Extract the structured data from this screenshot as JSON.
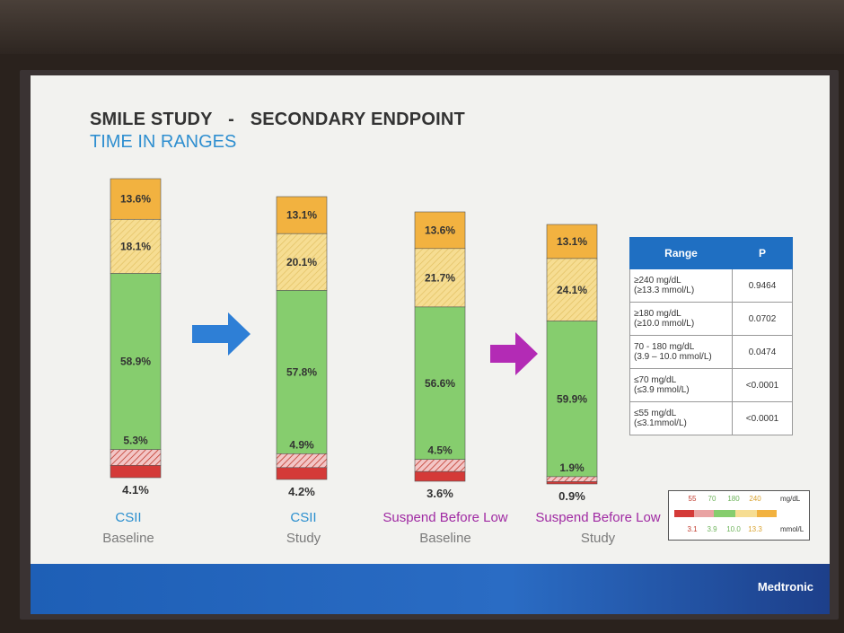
{
  "slide": {
    "title_line1_part1": "SMILE STUDY",
    "title_dash": "-",
    "title_line1_part2": "SECONDARY ENDPOINT",
    "title_line2": "TIME IN RANGES",
    "footer_brand": "Medtronic"
  },
  "colors": {
    "very_high": "#f2b240",
    "high": "#f6dd92",
    "in_range": "#86cd6e",
    "low": "#e28c8c",
    "very_low": "#d43a38",
    "csii": "#2b8fcf",
    "sbl": "#a02aa3",
    "arrow_csii": "#2e7fd6",
    "arrow_sbl": "#b32bb5"
  },
  "chart_data": {
    "type": "bar",
    "stacked": true,
    "categories": [
      "CSII Baseline",
      "CSII Study",
      "Suspend Before Low Baseline",
      "Suspend Before Low Study"
    ],
    "series": [
      {
        "name": "≥240 mg/dL",
        "values": [
          13.6,
          13.1,
          13.6,
          13.1
        ]
      },
      {
        "name": "180-240 mg/dL",
        "values": [
          18.1,
          20.1,
          21.7,
          24.1
        ]
      },
      {
        "name": "70-180 mg/dL",
        "values": [
          58.9,
          57.8,
          56.6,
          59.9
        ]
      },
      {
        "name": "55-70 mg/dL",
        "values": [
          5.3,
          4.9,
          4.5,
          1.9
        ]
      },
      {
        "name": "<55 mg/dL",
        "values": [
          4.1,
          4.2,
          3.6,
          0.9
        ]
      }
    ],
    "labels": [
      [
        "13.6%",
        "18.1%",
        "58.9%",
        "5.3%",
        "4.1%"
      ],
      [
        "13.1%",
        "20.1%",
        "57.8%",
        "4.9%",
        "4.2%"
      ],
      [
        "13.6%",
        "21.7%",
        "56.6%",
        "4.5%",
        "3.6%"
      ],
      [
        "13.1%",
        "24.1%",
        "59.9%",
        "1.9%",
        "0.9%"
      ]
    ],
    "group_labels": [
      "CSII",
      "CSII",
      "Suspend Before Low",
      "Suspend Before Low"
    ],
    "period_labels": [
      "Baseline",
      "Study",
      "Baseline",
      "Study"
    ]
  },
  "p_table": {
    "headers": [
      "Range",
      "P"
    ],
    "rows": [
      {
        "range": "≥240 mg/dL",
        "sub": "(≥13.3 mmol/L)",
        "p": "0.9464"
      },
      {
        "range": "≥180 mg/dL",
        "sub": "(≥10.0 mmol/L)",
        "p": "0.0702"
      },
      {
        "range": "70 - 180 mg/dL",
        "sub": "(3.9 – 10.0 mmol/L)",
        "p": "0.0474"
      },
      {
        "range": "≤70 mg/dL",
        "sub": "(≤3.9 mmol/L)",
        "p": "<0.0001"
      },
      {
        "range": "≤55 mg/dL",
        "sub": "(≤3.1mmol/L)",
        "p": "<0.0001"
      }
    ]
  },
  "legend": {
    "mgdl_ticks": [
      "55",
      "70",
      "180",
      "240"
    ],
    "mgdl_unit": "mg/dL",
    "mmol_ticks": [
      "3.1",
      "3.9",
      "10.0",
      "13.3"
    ],
    "mmol_unit": "mmol/L"
  }
}
